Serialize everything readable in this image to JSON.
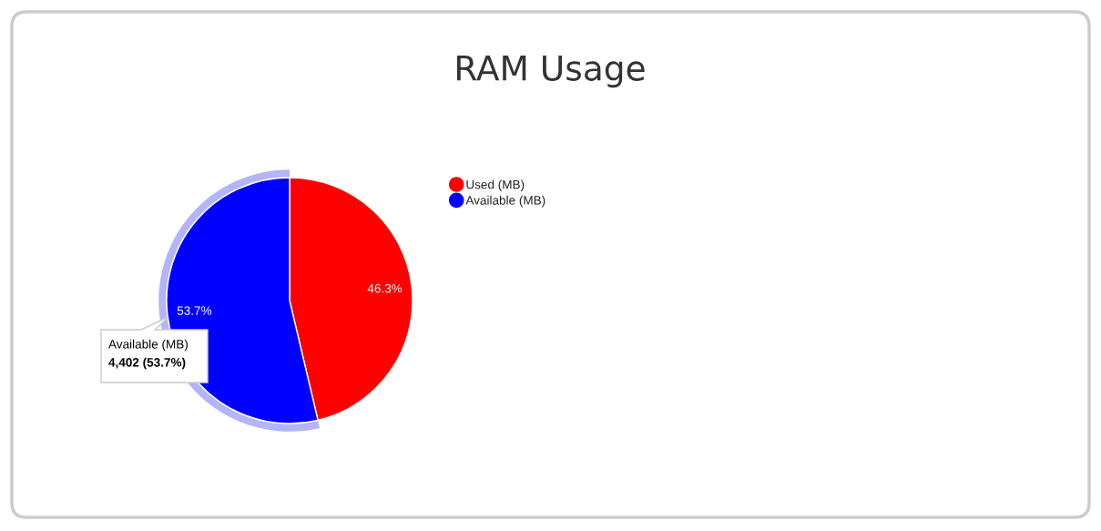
{
  "chart_data": {
    "type": "pie",
    "title": "RAM Usage",
    "categories": [
      "Used (MB)",
      "Available (MB)"
    ],
    "values": [
      46.3,
      53.7
    ],
    "colors": [
      "#ff0000",
      "#0000ff"
    ],
    "value_labels": [
      "46.3%",
      "53.7%"
    ],
    "legend": "right",
    "annotations": [
      "Available (MB)",
      "4,402 (53.7%)"
    ]
  }
}
